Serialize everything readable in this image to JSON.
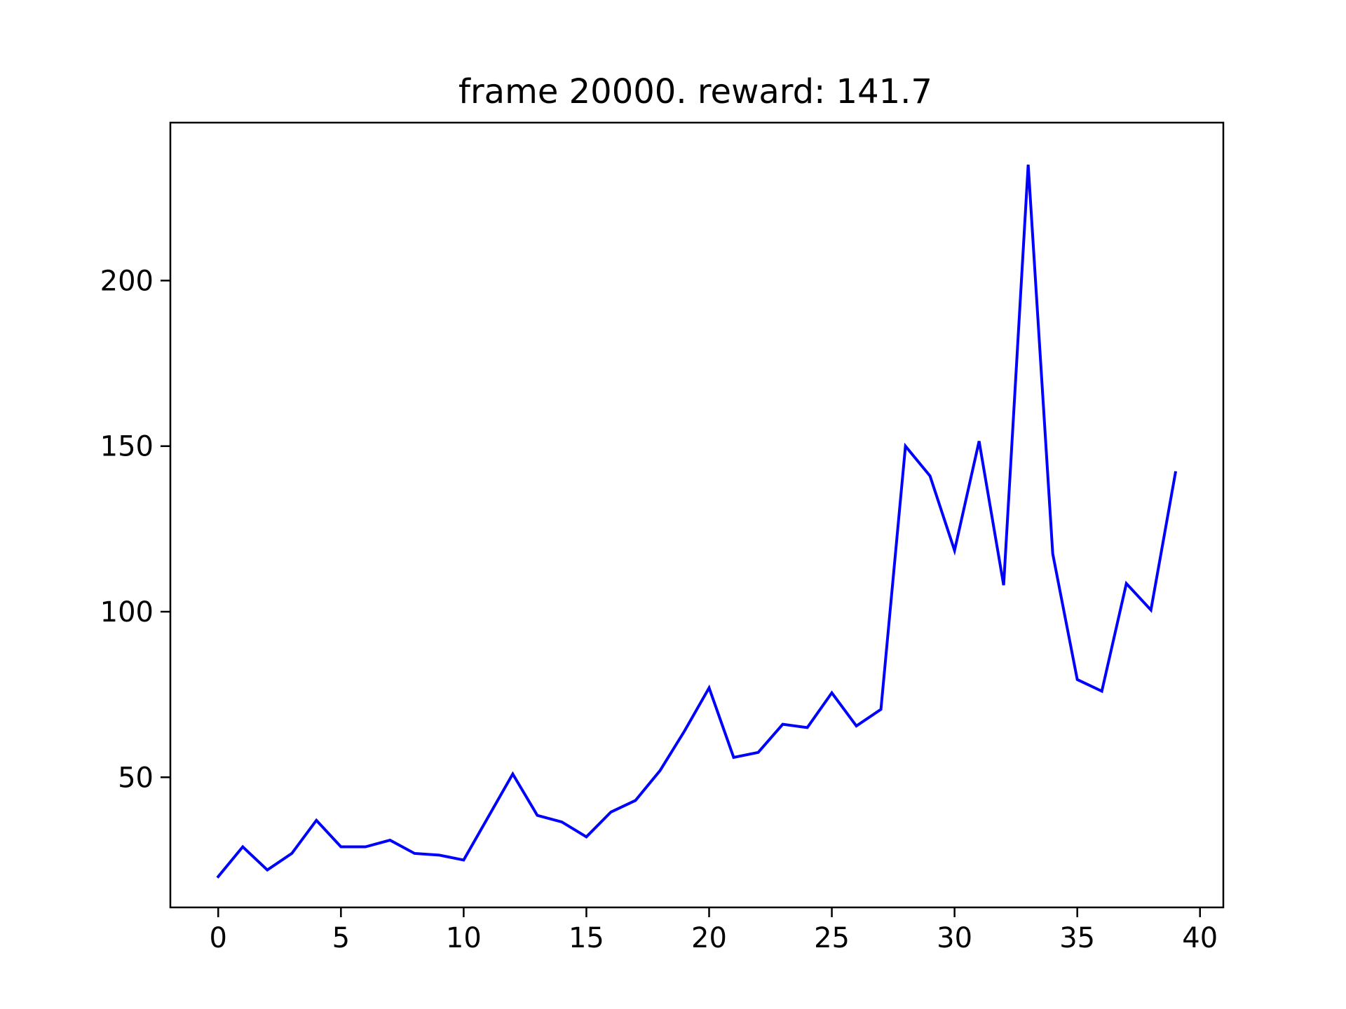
{
  "chart_data": {
    "type": "line",
    "title": "frame 20000. reward: 141.7",
    "xlabel": "",
    "ylabel": "",
    "xlim": [
      -1.95,
      40.95
    ],
    "ylim": [
      10.7,
      247.7
    ],
    "x_ticks": [
      0,
      5,
      10,
      15,
      20,
      25,
      30,
      35,
      40
    ],
    "y_ticks": [
      50,
      100,
      150,
      200
    ],
    "grid": false,
    "legend": "none",
    "series": [
      {
        "color": "#0000ff",
        "x": [
          0,
          1,
          2,
          3,
          4,
          5,
          6,
          7,
          8,
          9,
          10,
          11,
          12,
          13,
          14,
          15,
          16,
          17,
          18,
          19,
          20,
          21,
          22,
          23,
          24,
          25,
          26,
          27,
          28,
          29,
          30,
          31,
          32,
          33,
          34,
          35,
          36,
          37,
          38,
          39
        ],
        "values": [
          20,
          29,
          22,
          27,
          37,
          29,
          29,
          31,
          27,
          26.5,
          25,
          38,
          51,
          38.5,
          36.5,
          32,
          39.5,
          43,
          52,
          64,
          77,
          56,
          57.5,
          66,
          65,
          75.5,
          65.5,
          70.5,
          150,
          141,
          118.5,
          151.5,
          108,
          235,
          117.5,
          79.5,
          76,
          108.5,
          100.5,
          142
        ]
      }
    ]
  }
}
